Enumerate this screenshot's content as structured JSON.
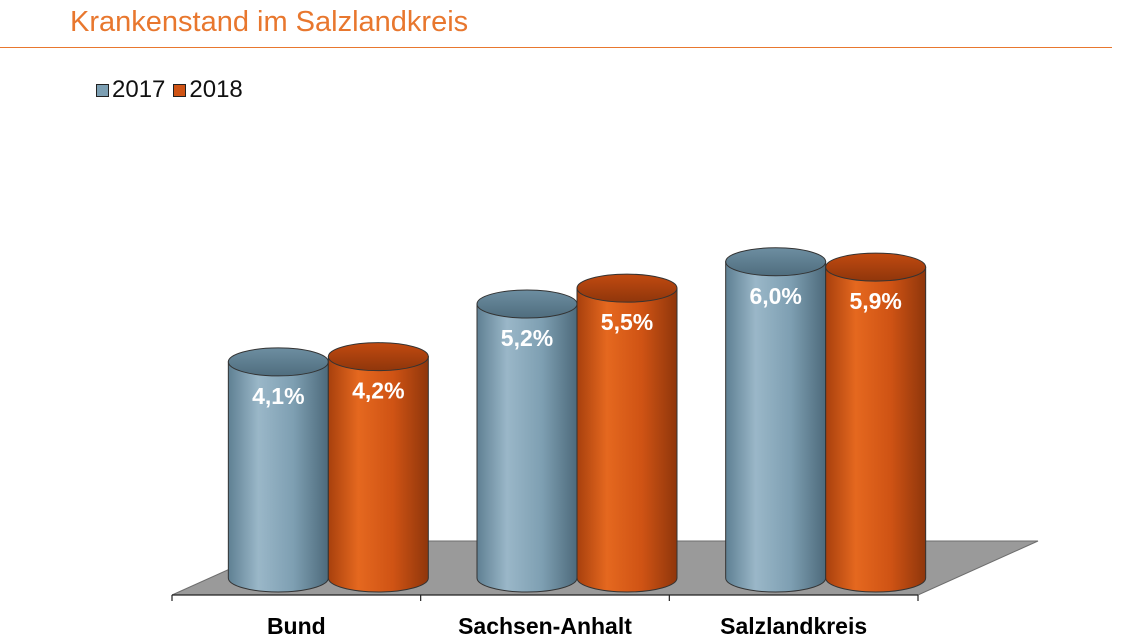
{
  "chart_data": {
    "type": "bar",
    "title": "Krankenstand im Salzlandkreis",
    "xlabel": "",
    "ylabel": "",
    "categories": [
      "Bund",
      "Sachsen-Anhalt",
      "Salzlandkreis"
    ],
    "series": [
      {
        "name": "2017",
        "values": [
          4.1,
          5.2,
          6.0
        ],
        "labels": [
          "4,1%",
          "5,2%",
          "6,0%"
        ],
        "color": "#7c9fb3"
      },
      {
        "name": "2018",
        "values": [
          4.2,
          5.5,
          5.9
        ],
        "labels": [
          "4,2%",
          "5,5%",
          "5,9%"
        ],
        "color": "#cf5314"
      }
    ],
    "ylim": [
      0,
      6.5
    ],
    "grid": false,
    "legend_position": "top-left",
    "shape": "3d-cylinder",
    "floor_color": "#9a9a9a",
    "title_color": "#e8772e"
  }
}
